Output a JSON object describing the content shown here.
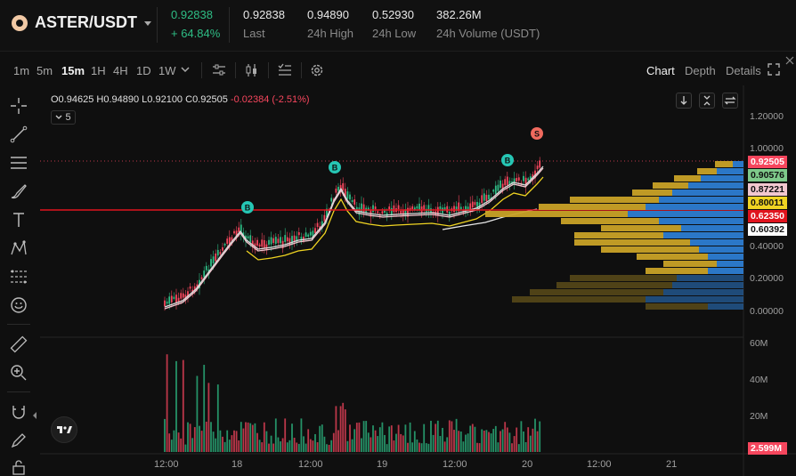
{
  "header": {
    "pair": "ASTER/USDT",
    "last_price": "0.92838",
    "change_pct": "+ 64.84%",
    "stats": [
      {
        "value": "0.92838",
        "label": "Last"
      },
      {
        "value": "0.94890",
        "label": "24h High"
      },
      {
        "value": "0.52930",
        "label": "24h Low"
      },
      {
        "value": "382.26M",
        "label": "24h Volume (USDT)"
      }
    ]
  },
  "toolbar": {
    "timeframes": [
      "1m",
      "5m",
      "15m",
      "1H",
      "4H",
      "1D",
      "1W"
    ],
    "active_timeframe": "15m",
    "views": [
      "Chart",
      "Depth",
      "Details"
    ],
    "active_view": "Chart"
  },
  "chart": {
    "ohlc": {
      "o": "O0.94625",
      "h": "H0.94890",
      "l": "L0.92100",
      "c": "C0.92505",
      "chg": "-0.02384 (-2.51%)"
    },
    "indicator_count": "5",
    "price_axis": [
      "1.20000",
      "1.00000",
      "0.40000",
      "0.20000",
      "0.00000"
    ],
    "volume_axis": [
      "60M",
      "40M",
      "20M"
    ],
    "volume_tag": "2.599M",
    "price_tags": [
      {
        "text": "0.92505",
        "bg": "#f6465d",
        "fg": "#ffffff"
      },
      {
        "text": "0.90576",
        "bg": "#7ec98a",
        "fg": "#0f0f0f"
      },
      {
        "text": "0.87221",
        "bg": "#f2c7cf",
        "fg": "#0f0f0f"
      },
      {
        "text": "0.80011",
        "bg": "#f0d422",
        "fg": "#0f0f0f"
      },
      {
        "text": "0.62350",
        "bg": "#e0141e",
        "fg": "#ffffff"
      },
      {
        "text": "0.60392",
        "bg": "#ffffff",
        "fg": "#0f0f0f"
      }
    ],
    "x_axis": [
      "12:00",
      "18",
      "12:00",
      "19",
      "12:00",
      "20",
      "12:00",
      "21"
    ],
    "markers": [
      {
        "label": "B",
        "color": "#26c6b4"
      },
      {
        "label": "B",
        "color": "#26c6b4"
      },
      {
        "label": "B",
        "color": "#26c6b4"
      },
      {
        "label": "S",
        "color": "#f06a5e"
      }
    ],
    "colors": {
      "up": "#2ebd85",
      "down": "#f6465d",
      "profile_blue": "#2d7dd2",
      "profile_gold": "#c9a227"
    }
  }
}
